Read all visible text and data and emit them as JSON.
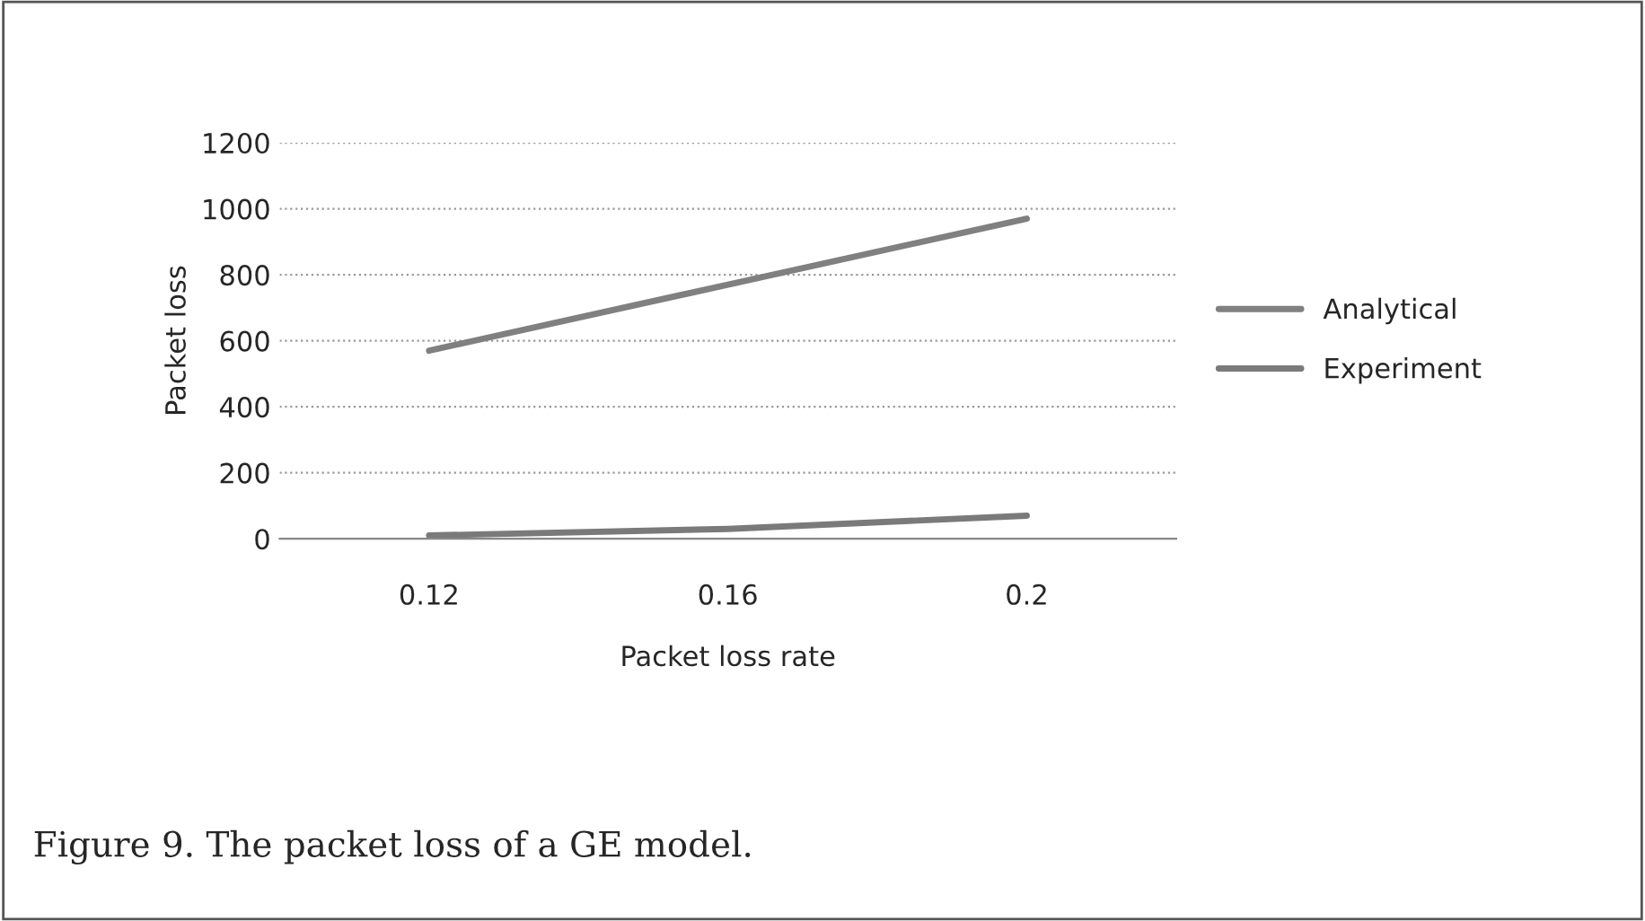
{
  "chart_data": {
    "type": "line",
    "xlabel": "Packet loss rate",
    "ylabel": "Packet loss",
    "categories": [
      "0.12",
      "0.16",
      "0.2"
    ],
    "series": [
      {
        "name": "Analytical",
        "color": "#808080",
        "values": [
          570,
          770,
          970
        ]
      },
      {
        "name": "Experiment",
        "color": "#7a7a7a",
        "values": [
          10,
          30,
          70
        ]
      }
    ],
    "ylim": [
      0,
      1200
    ],
    "yticks": [
      0,
      200,
      400,
      600,
      800,
      1000,
      1200
    ],
    "grid": "y",
    "legend": "right",
    "marker": "none",
    "line_style": "solid",
    "annotations": [
      "Figure 9. The packet loss of a GE model."
    ]
  }
}
